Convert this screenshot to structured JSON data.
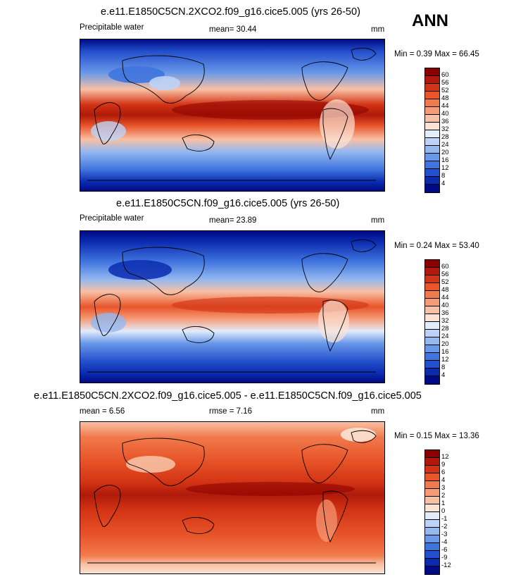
{
  "season": "ANN",
  "panels": [
    {
      "title": "e.e11.E1850C5CN.2XCO2.f09_g16.cice5.005 (yrs 26-50)",
      "left_label": "Precipitable water",
      "center_label": "mean=  30.44",
      "units": "mm",
      "minmax": "Min =   0.39 Max =  66.45",
      "levels": [
        "60",
        "56",
        "52",
        "48",
        "44",
        "40",
        "36",
        "32",
        "28",
        "24",
        "20",
        "16",
        "12",
        "8",
        "4"
      ],
      "colors": [
        "#8b0000",
        "#b01a0a",
        "#d23314",
        "#e8552a",
        "#f07a4c",
        "#f59b78",
        "#f8c0a4",
        "#fbe3d4",
        "#e2ecfb",
        "#bcd3f7",
        "#94b8f0",
        "#6a98e8",
        "#3f74de",
        "#2350cc",
        "#0a2bb0",
        "#000a85"
      ]
    },
    {
      "title": "e.e11.E1850C5CN.f09_g16.cice5.005 (yrs 26-50)",
      "left_label": "Precipitable water",
      "center_label": "mean=  23.89",
      "units": "mm",
      "minmax": "Min =   0.24 Max =  53.40",
      "levels": [
        "60",
        "56",
        "52",
        "48",
        "44",
        "40",
        "36",
        "32",
        "28",
        "24",
        "20",
        "16",
        "12",
        "8",
        "4"
      ],
      "colors": [
        "#8b0000",
        "#b01a0a",
        "#d23314",
        "#e8552a",
        "#f07a4c",
        "#f59b78",
        "#f8c0a4",
        "#fbe3d4",
        "#e2ecfb",
        "#bcd3f7",
        "#94b8f0",
        "#6a98e8",
        "#3f74de",
        "#2350cc",
        "#0a2bb0",
        "#000a85"
      ]
    },
    {
      "title": "e.e11.E1850C5CN.2XCO2.f09_g16.cice5.005 - e.e11.E1850C5CN.f09_g16.cice5.005",
      "left_label": "mean =   6.56",
      "center_label": "rmse =   7.16",
      "units": "mm",
      "minmax": "Min =   0.15 Max =  13.36",
      "levels": [
        "12",
        "9",
        "6",
        "4",
        "3",
        "2",
        "1",
        "0",
        "-1",
        "-2",
        "-3",
        "-4",
        "-6",
        "-9",
        "-12"
      ],
      "colors": [
        "#8b0000",
        "#b01a0a",
        "#d23314",
        "#e8552a",
        "#f07a4c",
        "#f59b78",
        "#f8c0a4",
        "#fbe3d4",
        "#e2ecfb",
        "#bcd3f7",
        "#94b8f0",
        "#6a98e8",
        "#3f74de",
        "#2350cc",
        "#0a2bb0",
        "#000a85"
      ]
    }
  ]
}
